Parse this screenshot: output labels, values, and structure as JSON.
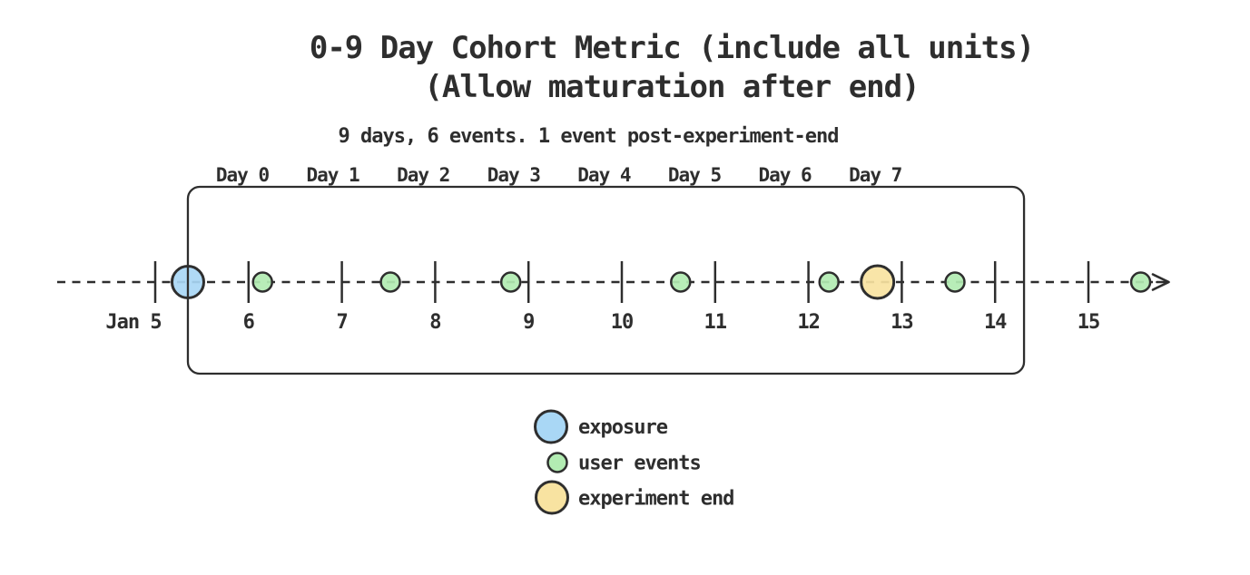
{
  "header": {
    "title_line1": "0-9 Day Cohort Metric (include all units)",
    "title_line2": "(Allow maturation after end)",
    "subtitle": "9 days, 6 events. 1 event post-experiment-end"
  },
  "diagram": {
    "axis_start_day": 5,
    "axis_end_day": 15,
    "axis_month": "Jan",
    "axis_tick_labels": [
      "Jan 5",
      "6",
      "7",
      "8",
      "9",
      "10",
      "11",
      "12",
      "13",
      "14",
      "15"
    ],
    "day_labels": [
      "Day 0",
      "Day 1",
      "Day 2",
      "Day 3",
      "Day 4",
      "Day 5",
      "Day 6",
      "Day 7"
    ],
    "exposure": {
      "day": 5.35,
      "color": "#a9d7f5"
    },
    "user_events": {
      "days": [
        6.15,
        7.52,
        8.81,
        10.63,
        12.22,
        13.57,
        15.56
      ],
      "color": "#b2ecb2"
    },
    "experiment_end": {
      "day": 12.74,
      "color": "#f8e3a1"
    },
    "window": {
      "start_day": 5.35,
      "end_day": 14.31
    }
  },
  "legend": {
    "items": [
      {
        "label": "exposure",
        "color": "#a9d7f5",
        "size": "large"
      },
      {
        "label": "user events",
        "color": "#b2ecb2",
        "size": "small"
      },
      {
        "label": "experiment end",
        "color": "#f8e3a1",
        "size": "large"
      }
    ]
  },
  "ink_color": "#2e2e2e",
  "background_color": "#ffffff"
}
